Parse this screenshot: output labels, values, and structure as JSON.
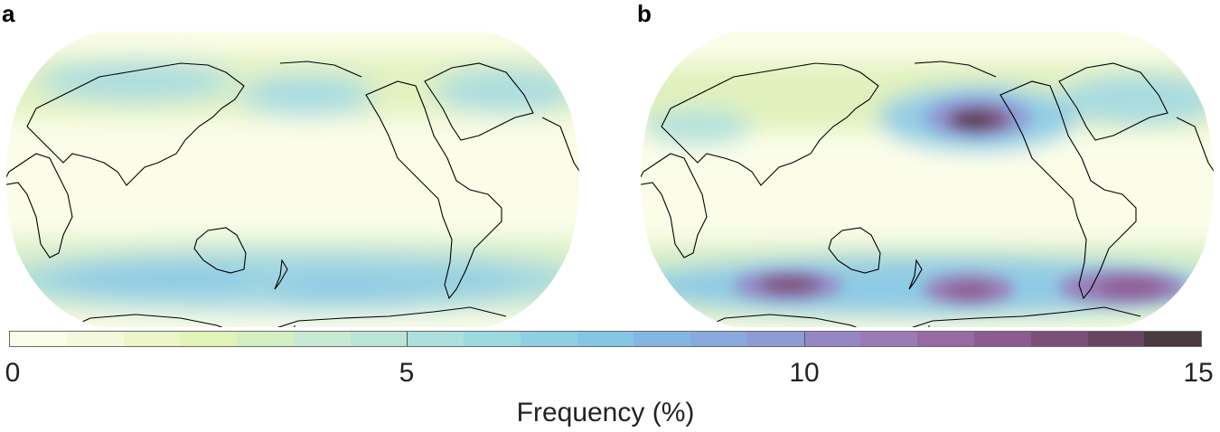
{
  "panels": [
    {
      "label": "a"
    },
    {
      "label": "b"
    }
  ],
  "colorbar": {
    "title": "Frequency (%)",
    "min": 0,
    "max": 15,
    "ticks": [
      "0",
      "5",
      "10",
      "15"
    ],
    "colors": [
      "#fafce9",
      "#f4f9dd",
      "#ebf5c8",
      "#e1f3b6",
      "#d5eec4",
      "#c9ead2",
      "#bae6d8",
      "#abe0dc",
      "#9dd9e0",
      "#8ecfe4",
      "#85c6e5",
      "#84b6e4",
      "#87a9dd",
      "#8e9bd5",
      "#9587c4",
      "#9a7bb6",
      "#976aa3",
      "#8c5b90",
      "#7c4f78",
      "#684561",
      "#4a3a42"
    ]
  },
  "chart_data": [
    {
      "type": "heatmap",
      "title": "a",
      "description": "Global map (Pacific-centred, Robinson-like projection) of event frequency",
      "colorbar_label": "Frequency (%)",
      "value_range": [
        0,
        15
      ],
      "features": [
        {
          "region": "North Pacific storm track",
          "approx_value": 5
        },
        {
          "region": "North Atlantic / Eurasia",
          "approx_value": 5
        },
        {
          "region": "Southern Ocean band (~50S)",
          "approx_value": 6
        },
        {
          "region": "Tropics",
          "approx_value": 0.5
        }
      ]
    },
    {
      "type": "heatmap",
      "title": "b",
      "description": "Global map (Pacific-centred, Robinson-like projection) of event frequency",
      "colorbar_label": "Frequency (%)",
      "value_range": [
        0,
        15
      ],
      "features": [
        {
          "region": "North Pacific maximum",
          "approx_value": 13
        },
        {
          "region": "Southern Indian Ocean maximum",
          "approx_value": 12
        },
        {
          "region": "South Pacific maximum",
          "approx_value": 11
        },
        {
          "region": "South Atlantic / Drake Passage maximum",
          "approx_value": 11.5
        },
        {
          "region": "North Atlantic",
          "approx_value": 6
        },
        {
          "region": "Tropics",
          "approx_value": 0.5
        }
      ]
    }
  ]
}
